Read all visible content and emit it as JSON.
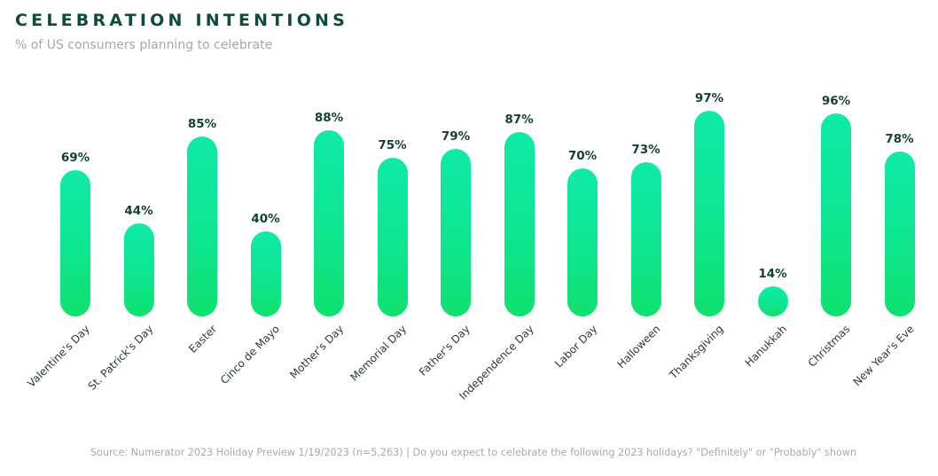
{
  "header": {
    "title": "CELEBRATION INTENTIONS",
    "subtitle": "% of US consumers planning to celebrate"
  },
  "footer": {
    "source": "Source: Numerator 2023 Holiday Preview 1/19/2023 (n=5,263) | Do you expect to celebrate the following 2023 holidays? \"Definitely\" or \"Probably\" shown"
  },
  "colors": {
    "bar_top": "#0eeaa8",
    "bar_bottom": "#0fe06e",
    "title": "#0f4a3c",
    "label": "#133f35"
  },
  "chart_data": {
    "type": "bar",
    "title": "CELEBRATION INTENTIONS",
    "subtitle": "% of US consumers planning to celebrate",
    "xlabel": "",
    "ylabel": "",
    "ylim": [
      0,
      100
    ],
    "grid": false,
    "legend": null,
    "categories": [
      "Valentine's Day",
      "St. Patrick's Day",
      "Easter",
      "Cinco de Mayo",
      "Mother's Day",
      "Memorial Day",
      "Father's Day",
      "Independence Day",
      "Labor Day",
      "Halloween",
      "Thanksgiving",
      "Hanukkah",
      "Christmas",
      "New Year's Eve"
    ],
    "values": [
      69,
      44,
      85,
      40,
      88,
      75,
      79,
      87,
      70,
      73,
      97,
      14,
      96,
      78
    ],
    "labels": [
      "69%",
      "44%",
      "85%",
      "40%",
      "88%",
      "75%",
      "79%",
      "87%",
      "70%",
      "73%",
      "97%",
      "14%",
      "96%",
      "78%"
    ]
  }
}
